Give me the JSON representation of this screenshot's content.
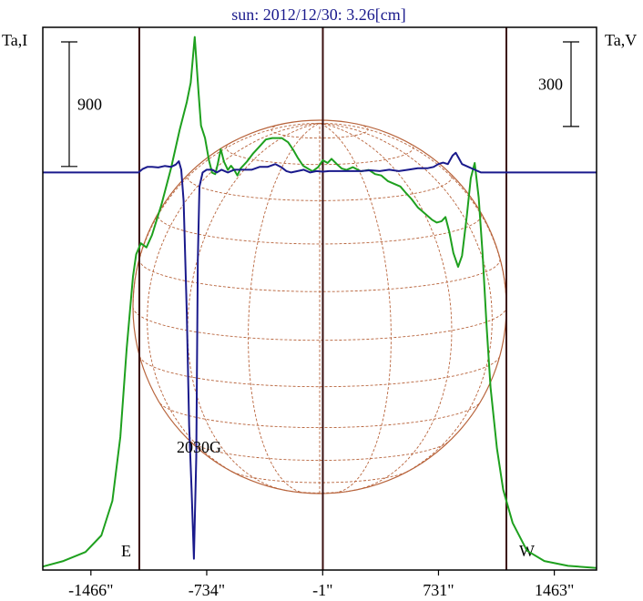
{
  "title": "sun: 2012/12/30: 3.26[cm]",
  "left_axis_label": "Ta,I",
  "right_axis_label": "Ta,V",
  "colors": {
    "frame": "#000000",
    "limb_lines": "#3a1010",
    "intensity": "#1ea01e",
    "polarization": "#1a1a8c",
    "grid": "#b8643c"
  },
  "chart_data": {
    "type": "line",
    "title": "sun: 2012/12/30: 3.26[cm]",
    "xlabel": "",
    "xlim": [
      -1770,
      1730
    ],
    "x_ticks": [
      {
        "value": -1466,
        "label": "-1466\""
      },
      {
        "value": -734,
        "label": "-734\""
      },
      {
        "value": -1,
        "label": "-1\""
      },
      {
        "value": 731,
        "label": "731\""
      },
      {
        "value": 1463,
        "label": "1463\""
      }
    ],
    "limb_markers": [
      {
        "x": -1160,
        "label": "E"
      },
      {
        "x": 1160,
        "label": "W"
      }
    ],
    "scale_bars": [
      {
        "axis": "left",
        "value": 900,
        "label": "900"
      },
      {
        "axis": "right",
        "value": 300,
        "label": "300"
      }
    ],
    "annotation": {
      "text": "2030G",
      "x": -760
    },
    "series": [
      {
        "axis": "left",
        "unit": "Ta,I",
        "ylim": [
          0,
          3920
        ],
        "points": [
          [
            -1770,
            25
          ],
          [
            -1640,
            65
          ],
          [
            -1500,
            130
          ],
          [
            -1400,
            250
          ],
          [
            -1330,
            500
          ],
          [
            -1280,
            960
          ],
          [
            -1240,
            1600
          ],
          [
            -1200,
            2120
          ],
          [
            -1180,
            2280
          ],
          [
            -1150,
            2360
          ],
          [
            -1115,
            2330
          ],
          [
            -1080,
            2420
          ],
          [
            -1020,
            2640
          ],
          [
            -960,
            2900
          ],
          [
            -905,
            3180
          ],
          [
            -860,
            3380
          ],
          [
            -835,
            3520
          ],
          [
            -810,
            3850
          ],
          [
            -785,
            3440
          ],
          [
            -770,
            3210
          ],
          [
            -745,
            3120
          ],
          [
            -720,
            2960
          ],
          [
            -700,
            2870
          ],
          [
            -680,
            2860
          ],
          [
            -665,
            2930
          ],
          [
            -645,
            3040
          ],
          [
            -625,
            2950
          ],
          [
            -600,
            2890
          ],
          [
            -580,
            2920
          ],
          [
            -560,
            2890
          ],
          [
            -540,
            2850
          ],
          [
            -520,
            2900
          ],
          [
            -480,
            2950
          ],
          [
            -440,
            3010
          ],
          [
            -400,
            3060
          ],
          [
            -360,
            3110
          ],
          [
            -320,
            3120
          ],
          [
            -260,
            3120
          ],
          [
            -220,
            3090
          ],
          [
            -190,
            3040
          ],
          [
            -160,
            2980
          ],
          [
            -125,
            2920
          ],
          [
            -95,
            2900
          ],
          [
            -65,
            2880
          ],
          [
            -30,
            2910
          ],
          [
            0,
            2960
          ],
          [
            30,
            2940
          ],
          [
            55,
            2970
          ],
          [
            90,
            2930
          ],
          [
            120,
            2900
          ],
          [
            150,
            2890
          ],
          [
            190,
            2910
          ],
          [
            240,
            2880
          ],
          [
            290,
            2890
          ],
          [
            330,
            2860
          ],
          [
            370,
            2850
          ],
          [
            410,
            2810
          ],
          [
            450,
            2790
          ],
          [
            490,
            2770
          ],
          [
            520,
            2730
          ],
          [
            560,
            2680
          ],
          [
            600,
            2620
          ],
          [
            650,
            2570
          ],
          [
            690,
            2530
          ],
          [
            720,
            2510
          ],
          [
            750,
            2520
          ],
          [
            775,
            2550
          ],
          [
            800,
            2440
          ],
          [
            825,
            2290
          ],
          [
            855,
            2190
          ],
          [
            880,
            2270
          ],
          [
            910,
            2560
          ],
          [
            935,
            2830
          ],
          [
            960,
            2940
          ],
          [
            985,
            2690
          ],
          [
            1010,
            2280
          ],
          [
            1035,
            1760
          ],
          [
            1060,
            1320
          ],
          [
            1100,
            880
          ],
          [
            1140,
            580
          ],
          [
            1200,
            340
          ],
          [
            1290,
            140
          ],
          [
            1400,
            65
          ],
          [
            1550,
            30
          ],
          [
            1730,
            15
          ]
        ]
      },
      {
        "axis": "right",
        "unit": "Ta,V",
        "ylim": [
          -1410,
          515
        ],
        "points": [
          [
            -1770,
            0
          ],
          [
            -1210,
            0
          ],
          [
            -1165,
            0
          ],
          [
            -1140,
            12
          ],
          [
            -1110,
            20
          ],
          [
            -1080,
            20
          ],
          [
            -1040,
            18
          ],
          [
            -1000,
            23
          ],
          [
            -960,
            20
          ],
          [
            -930,
            28
          ],
          [
            -910,
            40
          ],
          [
            -895,
            10
          ],
          [
            -880,
            -100
          ],
          [
            -860,
            -500
          ],
          [
            -845,
            -900
          ],
          [
            -830,
            -1120
          ],
          [
            -815,
            -1370
          ],
          [
            -800,
            -1010
          ],
          [
            -790,
            -310
          ],
          [
            -780,
            -50
          ],
          [
            -760,
            0
          ],
          [
            -735,
            10
          ],
          [
            -700,
            10
          ],
          [
            -670,
            0
          ],
          [
            -640,
            10
          ],
          [
            -600,
            0
          ],
          [
            -560,
            10
          ],
          [
            -500,
            10
          ],
          [
            -450,
            10
          ],
          [
            -400,
            20
          ],
          [
            -350,
            20
          ],
          [
            -300,
            30
          ],
          [
            -260,
            18
          ],
          [
            -230,
            5
          ],
          [
            -200,
            0
          ],
          [
            -160,
            5
          ],
          [
            -120,
            10
          ],
          [
            -80,
            0
          ],
          [
            -40,
            5
          ],
          [
            0,
            3
          ],
          [
            40,
            5
          ],
          [
            100,
            5
          ],
          [
            170,
            5
          ],
          [
            240,
            5
          ],
          [
            300,
            8
          ],
          [
            360,
            5
          ],
          [
            420,
            10
          ],
          [
            480,
            5
          ],
          [
            540,
            10
          ],
          [
            600,
            15
          ],
          [
            660,
            15
          ],
          [
            700,
            20
          ],
          [
            730,
            30
          ],
          [
            760,
            35
          ],
          [
            790,
            30
          ],
          [
            820,
            60
          ],
          [
            840,
            70
          ],
          [
            860,
            50
          ],
          [
            880,
            30
          ],
          [
            920,
            20
          ],
          [
            960,
            10
          ],
          [
            1000,
            0
          ],
          [
            1060,
            0
          ],
          [
            1120,
            0
          ],
          [
            1200,
            0
          ],
          [
            1300,
            0
          ],
          [
            1400,
            0
          ],
          [
            1500,
            0
          ],
          [
            1600,
            0
          ],
          [
            1730,
            0
          ]
        ]
      }
    ]
  }
}
